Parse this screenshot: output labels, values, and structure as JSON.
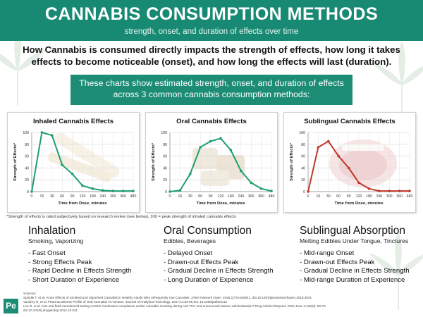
{
  "banner": {
    "title": "CANNABIS CONSUMPTION METHODS",
    "subtitle": "strength, onset, and duration of effects over time"
  },
  "intro": "How Cannabis is consumed directly impacts the strength of effects, how long it takes effects to become noticeable (onset), and how long the effects will last (duration).",
  "callout": "These charts show estimated strength, onset, and duration of effects across 3 common cannabis consumption methods:",
  "chart_data": [
    {
      "type": "line",
      "title": "Inhaled Cannabis Effects",
      "xlabel": "Time from Dose, minutes",
      "ylabel": "Strength of Effects*",
      "x": [
        0,
        15,
        30,
        60,
        90,
        120,
        180,
        240,
        300,
        360,
        480
      ],
      "values": [
        0,
        100,
        95,
        45,
        30,
        10,
        5,
        2,
        1,
        1,
        1
      ],
      "ylim": [
        0,
        100
      ],
      "yticks": [
        0,
        20,
        40,
        60,
        80,
        100
      ],
      "color": "#1e9e6e",
      "image": "joint"
    },
    {
      "type": "line",
      "title": "Oral Cannabis Effects",
      "xlabel": "Time from Dose, minutes",
      "ylabel": "Strength of Effects*",
      "x": [
        0,
        15,
        30,
        60,
        90,
        120,
        180,
        240,
        300,
        360,
        480
      ],
      "values": [
        0,
        2,
        30,
        75,
        85,
        90,
        70,
        35,
        15,
        5,
        1
      ],
      "ylim": [
        0,
        100
      ],
      "yticks": [
        0,
        20,
        40,
        60,
        80,
        100
      ],
      "color": "#1e9e6e",
      "image": "edibles"
    },
    {
      "type": "line",
      "title": "Sublingual Cannabis Effects",
      "xlabel": "Time from Dose, minutes",
      "ylabel": "Strength of Effects*",
      "x": [
        0,
        15,
        30,
        60,
        90,
        120,
        180,
        240,
        300,
        360,
        480
      ],
      "values": [
        0,
        75,
        85,
        60,
        40,
        15,
        5,
        1,
        1,
        1,
        1
      ],
      "ylim": [
        0,
        100
      ],
      "yticks": [
        0,
        20,
        40,
        60,
        80,
        100
      ],
      "color": "#c0392b",
      "image": "mouth"
    }
  ],
  "footnote": "*Strength of effects is rated subjectively based on research review (see below), 100 = peak strength of inhaled cannabis effects",
  "methods": [
    {
      "heading": "Inhalation",
      "subheading": "Smoking, Vaporizing",
      "items": [
        "- Fast Onset",
        "- Strong Effects Peak",
        "- Rapid Decline in Effects Strength",
        "- Short Duration of Experience"
      ]
    },
    {
      "heading": "Oral Consumption",
      "subheading": "Edibles, Beverages",
      "items": [
        "- Delayed Onset",
        "- Drawn-out Effects Peak",
        "- Gradual Decline in Effects Strength",
        "- Long Duration of Experience"
      ]
    },
    {
      "heading": "Sublingual Absorption",
      "subheading": "Melting Edibles Under Tongue, Tinctures",
      "items": [
        "- Mid-range Onset",
        "- Drawn-out Effects Peak",
        "- Gradual Decline in Effects Strength",
        "- Mid-range Duration of Experience"
      ]
    }
  ],
  "sources": {
    "label": "Sources:",
    "lines": [
      "Spindle T, et al. Acute Effects of Smoked and Vaporized Cannabis in Healthy Adults Who Infrequently Use Cannabis. JAMA Network Open. 2018;1(7):e184841. doi:10.1001/jamanetworkopen.2018.4841",
      "Vandrey R, et al. Pharmacokinetic Profile of Oral Cannabis in Humans. Journal of Analytical Toxicology. 2017;41:83-99 doi: 10.1093/jat/bkx012",
      "Lee D, et al. Can oral fluid cannabinoid testing monitor medication compliance and/or cannabis smoking during oral THC and oromucosal Sativex administration? Drug Alcohol Depend. 2013 June 1;130(0): 68-76.",
      "doi:10.1016/j.drugalcdep.2012.10.011."
    ]
  },
  "logo": "Pe",
  "colors": {
    "brand": "#188a73",
    "inhaled_line": "#1e9e6e",
    "oral_line": "#1e9e6e",
    "sublingual_line": "#c0392b"
  }
}
